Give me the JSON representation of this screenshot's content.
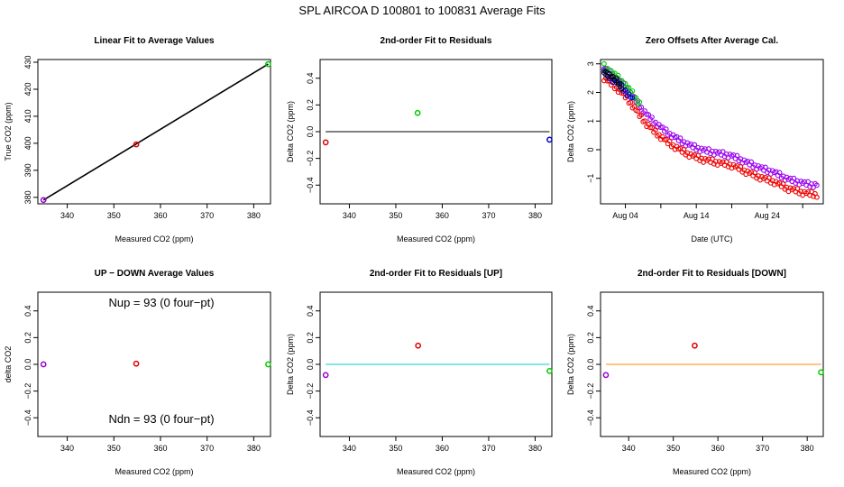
{
  "figure": {
    "title": "SPL    AIRCOA D    100801 to 100831    Average Fits"
  },
  "chart_data": [
    {
      "type": "scatter",
      "title": "Linear Fit to Average Values",
      "xlabel": "Measured CO2 (ppm)",
      "ylabel": "True CO2 (ppm)",
      "xlim": [
        333.7,
        383.6
      ],
      "ylim": [
        377.6,
        431.0
      ],
      "xticks": [
        340,
        350,
        360,
        370,
        380
      ],
      "yticks": [
        380,
        390,
        400,
        410,
        420,
        430
      ],
      "points": [
        {
          "x": 334.9,
          "y": 379.0,
          "color": "#9900cc"
        },
        {
          "x": 354.8,
          "y": 399.6,
          "color": "#dd0000"
        },
        {
          "x": 383.1,
          "y": 429.3,
          "color": "#00cc00"
        }
      ],
      "lines": [
        {
          "x": [
            334.9,
            383.1
          ],
          "y": [
            379.0,
            429.3
          ],
          "color": "#000000"
        }
      ]
    },
    {
      "type": "scatter",
      "title": "2nd-order Fit to Residuals",
      "xlabel": "Measured CO2 (ppm)",
      "ylabel": "Delta CO2 (ppm)",
      "xlim": [
        333.7,
        383.6
      ],
      "ylim": [
        -0.54,
        0.54
      ],
      "xticks": [
        340,
        350,
        360,
        370,
        380
      ],
      "yticks": [
        -0.4,
        -0.2,
        0.0,
        0.2,
        0.4
      ],
      "ytick_labels": [
        "−0.4",
        "−0.2",
        "0.0",
        "0.2",
        "0.4"
      ],
      "points": [
        {
          "x": 334.9,
          "y": -0.08,
          "color": "#dd0000"
        },
        {
          "x": 354.7,
          "y": 0.14,
          "color": "#00cc00"
        },
        {
          "x": 383.1,
          "y": -0.06,
          "color": "#0000cc"
        }
      ],
      "lines": [
        {
          "x": [
            334.9,
            383.1
          ],
          "y": [
            0.0,
            0.0
          ],
          "color": "#000000"
        }
      ]
    },
    {
      "type": "scatter",
      "title": "Zero Offsets After Average Cal.",
      "xlabel": "Date (UTC)",
      "ylabel": "Delta CO2 (ppm)",
      "xlim": [
        -0.5,
        30.9
      ],
      "ylim": [
        -1.89,
        3.15
      ],
      "xticks": [
        3,
        8,
        13,
        18,
        23,
        28
      ],
      "xtick_labels": [
        "Aug 04",
        "",
        "Aug 14",
        "",
        "Aug 24",
        ""
      ],
      "yticks": [
        -1,
        0,
        1,
        2,
        3
      ],
      "ytick_labels": [
        "−1",
        "0",
        "1",
        "2",
        "3"
      ],
      "curve_knots_x": [
        0,
        1,
        2,
        3,
        4,
        5,
        6,
        7,
        8,
        9,
        10,
        11,
        12,
        13,
        14,
        15,
        16,
        17,
        18,
        19,
        20,
        21,
        22,
        23,
        24,
        25,
        26,
        27,
        28,
        29,
        30
      ],
      "curve_knots_y": [
        2.75,
        2.55,
        2.35,
        2.1,
        1.8,
        1.45,
        1.15,
        0.9,
        0.7,
        0.5,
        0.35,
        0.2,
        0.08,
        -0.02,
        -0.1,
        -0.15,
        -0.2,
        -0.25,
        -0.3,
        -0.4,
        -0.52,
        -0.62,
        -0.72,
        -0.8,
        -0.88,
        -1.0,
        -1.12,
        -1.18,
        -1.25,
        -1.3,
        -1.32
      ],
      "series": [
        {
          "name": "purple",
          "color": "#9900ee",
          "offset": 0.08
        },
        {
          "name": "green",
          "color": "#00cc00",
          "offset": 0.16,
          "x_range": [
            0,
            5
          ]
        },
        {
          "name": "red",
          "color": "#ee0000",
          "offset": -0.25
        },
        {
          "name": "blue",
          "color": "#0000cc",
          "offset": -0.05,
          "x_range": [
            0,
            4
          ]
        },
        {
          "name": "black",
          "color": "#000000",
          "offset": 0.0,
          "x_range": [
            0,
            2.5
          ]
        }
      ]
    },
    {
      "type": "scatter",
      "title": "UP − DOWN Average Values",
      "xlabel": "Measured CO2 (ppm)",
      "ylabel": "delta CO2",
      "xlim": [
        333.7,
        383.6
      ],
      "ylim": [
        -0.54,
        0.54
      ],
      "xticks": [
        340,
        350,
        360,
        370,
        380
      ],
      "yticks": [
        -0.4,
        -0.2,
        0.0,
        0.2,
        0.4
      ],
      "ytick_labels": [
        "−0.4",
        "−0.2",
        "0.0",
        "0.2",
        "0.4"
      ],
      "annotations": [
        "Nup = 93 (0 four−pt)",
        "Ndn = 93 (0 four−pt)"
      ],
      "points": [
        {
          "x": 334.9,
          "y": 0.0,
          "color": "#9900cc"
        },
        {
          "x": 354.8,
          "y": 0.005,
          "color": "#dd0000"
        },
        {
          "x": 383.1,
          "y": 0.0,
          "color": "#00cc00"
        }
      ]
    },
    {
      "type": "scatter",
      "title": "2nd-order Fit to Residuals [UP]",
      "xlabel": "Measured CO2 (ppm)",
      "ylabel": "Delta CO2 (ppm)",
      "xlim": [
        333.7,
        383.6
      ],
      "ylim": [
        -0.54,
        0.54
      ],
      "xticks": [
        340,
        350,
        360,
        370,
        380
      ],
      "yticks": [
        -0.4,
        -0.2,
        0.0,
        0.2,
        0.4
      ],
      "ytick_labels": [
        "−0.4",
        "−0.2",
        "0.0",
        "0.2",
        "0.4"
      ],
      "points": [
        {
          "x": 334.9,
          "y": -0.08,
          "color": "#9900cc"
        },
        {
          "x": 354.8,
          "y": 0.14,
          "color": "#dd0000"
        },
        {
          "x": 383.1,
          "y": -0.05,
          "color": "#00cc00"
        }
      ],
      "lines": [
        {
          "x": [
            334.9,
            383.1
          ],
          "y": [
            0.0,
            0.0
          ],
          "color": "#00cccc"
        }
      ]
    },
    {
      "type": "scatter",
      "title": "2nd-order Fit to Residuals [DOWN]",
      "xlabel": "Measured CO2 (ppm)",
      "ylabel": "Delta CO2 (ppm)",
      "xlim": [
        333.7,
        383.6
      ],
      "ylim": [
        -0.54,
        0.54
      ],
      "xticks": [
        340,
        350,
        360,
        370,
        380
      ],
      "yticks": [
        -0.4,
        -0.2,
        0.0,
        0.2,
        0.4
      ],
      "ytick_labels": [
        "−0.4",
        "−0.2",
        "0.0",
        "0.2",
        "0.4"
      ],
      "points": [
        {
          "x": 334.9,
          "y": -0.08,
          "color": "#9900cc"
        },
        {
          "x": 354.8,
          "y": 0.14,
          "color": "#dd0000"
        },
        {
          "x": 383.1,
          "y": -0.06,
          "color": "#00cc00"
        }
      ],
      "lines": [
        {
          "x": [
            334.9,
            383.1
          ],
          "y": [
            0.0,
            0.0
          ],
          "color": "#ff8800"
        }
      ]
    }
  ]
}
